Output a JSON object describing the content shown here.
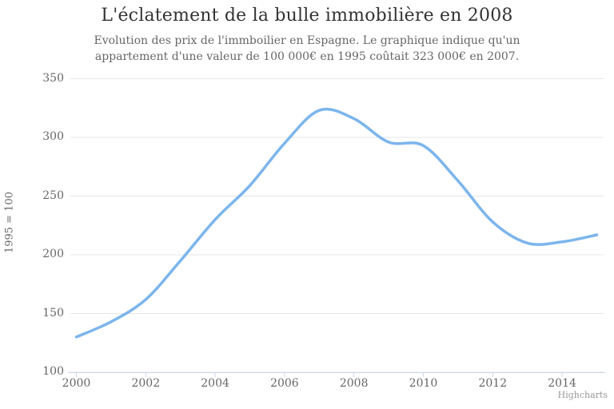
{
  "title": "L'éclatement de la bulle immobilière en 2008",
  "subtitle": "Evolution des prix de l'immboilier en Espagne. Le graphique indique qu'un appartement d'une valeur de 100 000€ en 1995 coûtait 323 000€ en 2007.",
  "credits": "Highcharts",
  "colors": {
    "line": "#7cb5ec",
    "grid": "#e6e6e6",
    "axis": "#ccd6eb",
    "title_text": "#333333",
    "label_text": "#666666",
    "credits_text": "#999999",
    "background": "#ffffff"
  },
  "chart_data": {
    "type": "line",
    "title": "L'éclatement de la bulle immobilière en 2008",
    "subtitle": "Evolution des prix de l'immboilier en Espagne. Le graphique indique qu'un appartement d'une valeur de 100 000€ en 1995 coûtait 323 000€ en 2007.",
    "xlabel": "",
    "ylabel": "1995 = 100",
    "x": [
      2000,
      2001,
      2002,
      2003,
      2004,
      2005,
      2006,
      2007,
      2008,
      2009,
      2010,
      2011,
      2012,
      2013,
      2014,
      2015
    ],
    "values": [
      130,
      143,
      162,
      195,
      230,
      259,
      295,
      323,
      316,
      296,
      293,
      263,
      228,
      210,
      211,
      217
    ],
    "x_ticks": [
      2000,
      2002,
      2004,
      2006,
      2008,
      2010,
      2012,
      2014
    ],
    "y_ticks": [
      100,
      150,
      200,
      250,
      300,
      350
    ],
    "ylim": [
      100,
      350
    ],
    "grid": true,
    "legend": false,
    "line_style": "spline",
    "line_color": "#7cb5ec",
    "credits": "Highcharts"
  }
}
